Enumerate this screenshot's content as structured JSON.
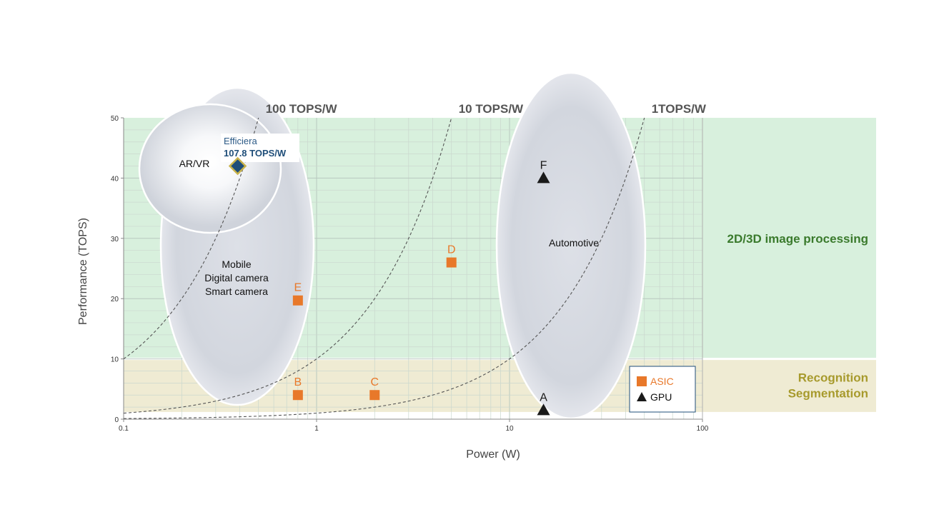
{
  "chart_data": {
    "type": "scatter",
    "xscale": "log",
    "xlim": [
      0.1,
      100
    ],
    "ylim": [
      0,
      50
    ],
    "xticks": [
      {
        "value": 0.1,
        "label": "0.1"
      },
      {
        "value": 1,
        "label": "1"
      },
      {
        "value": 10,
        "label": "10"
      },
      {
        "value": 100,
        "label": "100"
      }
    ],
    "yticks": [
      {
        "value": 0,
        "label": "0"
      },
      {
        "value": 10,
        "label": "10"
      },
      {
        "value": 20,
        "label": "20"
      },
      {
        "value": 30,
        "label": "30"
      },
      {
        "value": 40,
        "label": "40"
      },
      {
        "value": 50,
        "label": "50"
      }
    ],
    "xlabel": "Power (W)",
    "ylabel": "Performance (TOPS)",
    "grid": true,
    "bands": [
      {
        "name": "2D/3D image processing",
        "lines": [
          "2D/3D image processing"
        ],
        "y": [
          10,
          50
        ],
        "color": "#d8f0dd",
        "text_color": "#3a7a2c"
      },
      {
        "name": "Recognition Segmentation",
        "lines": [
          "Recognition",
          "Segmentation"
        ],
        "y": [
          1.2,
          10
        ],
        "color": "#efebd3",
        "text_color": "#a79a2c"
      }
    ],
    "efficiency_lines": [
      {
        "label": "100 TOPS/W",
        "tops_per_w": 100
      },
      {
        "label": "10 TOPS/W",
        "tops_per_w": 10
      },
      {
        "label": "1TOPS/W",
        "tops_per_w": 1
      }
    ],
    "regions": [
      {
        "name": "Mobile",
        "lines": [
          "Mobile",
          "Digital camera",
          "Smart camera"
        ]
      },
      {
        "name": "AR/VR",
        "lines": [
          "AR/VR"
        ]
      },
      {
        "name": "Automotive",
        "lines": [
          "Automotive"
        ]
      }
    ],
    "series": [
      {
        "name": "ASIC",
        "marker": "square",
        "color": "#e8782a",
        "points": [
          {
            "label": "B",
            "x": 0.8,
            "y": 4
          },
          {
            "label": "C",
            "x": 2,
            "y": 4
          },
          {
            "label": "D",
            "x": 5,
            "y": 26
          },
          {
            "label": "E",
            "x": 0.8,
            "y": 19.7
          }
        ]
      },
      {
        "name": "GPU",
        "marker": "triangle",
        "color": "#1a1a1a",
        "points": [
          {
            "label": "A",
            "x": 15,
            "y": 1.5
          },
          {
            "label": "F",
            "x": 15,
            "y": 40
          }
        ]
      }
    ],
    "highlight": {
      "name": "Efficiera",
      "value_label": "107.8 TOPS/W",
      "x": 0.39,
      "y": 42,
      "color": "#1f4e79",
      "border": "#c8b24a"
    },
    "legend": {
      "position": "bottom-right",
      "items": [
        "ASIC",
        "GPU"
      ]
    }
  }
}
